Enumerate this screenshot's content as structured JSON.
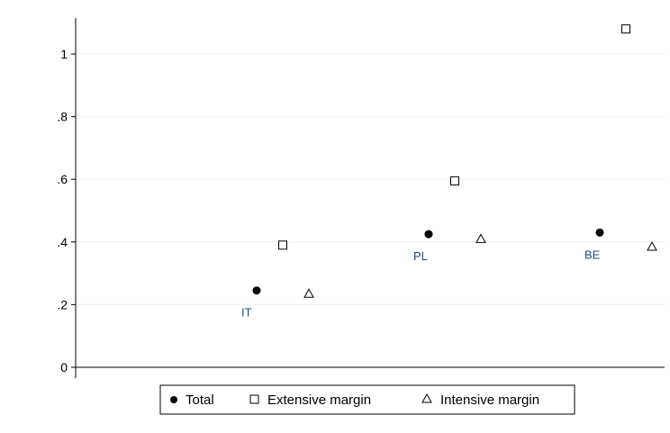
{
  "chart_data": {
    "type": "scatter",
    "title": "",
    "xlabel": "",
    "ylabel": "",
    "ylim": [
      -0.05,
      1.13
    ],
    "yticks": [
      {
        "value": 0,
        "label": "0"
      },
      {
        "value": 0.2,
        "label": ".2"
      },
      {
        "value": 0.4,
        "label": ".4"
      },
      {
        "value": 0.6,
        "label": ".6"
      },
      {
        "value": 0.8,
        "label": ".8"
      },
      {
        "value": 1.0,
        "label": "1"
      }
    ],
    "grid": true,
    "legend_position": "bottom",
    "categories": [
      "IT",
      "PL",
      "BE"
    ],
    "series": [
      {
        "name": "Total",
        "marker": "filled-circle",
        "values": [
          0.245,
          0.425,
          0.43
        ]
      },
      {
        "name": "Extensive margin",
        "marker": "hollow-square",
        "values": [
          0.39,
          0.595,
          1.08
        ]
      },
      {
        "name": "Intensive margin",
        "marker": "hollow-triangle",
        "values": [
          0.235,
          0.41,
          0.385
        ]
      }
    ]
  },
  "colors": {
    "grid": "#eaf0f2",
    "axis": "#000000",
    "marker": "#000000",
    "category_label": "#1f4e79"
  }
}
